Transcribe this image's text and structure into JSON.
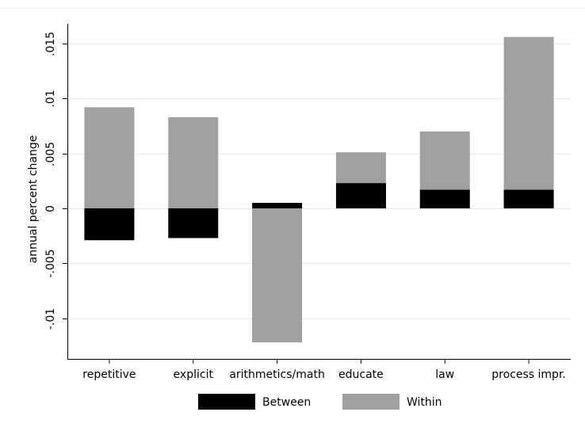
{
  "chart_data": {
    "type": "bar",
    "stacked": true,
    "categories": [
      "repetitive",
      "explicit",
      "arithmetics/math",
      "educate",
      "law",
      "process impr."
    ],
    "series": [
      {
        "name": "Between",
        "color": "#000000",
        "values": [
          -0.0029,
          -0.0027,
          0.0005,
          0.0023,
          0.0017,
          0.0017
        ]
      },
      {
        "name": "Within",
        "color": "#a0a0a0",
        "values": [
          0.0092,
          0.0083,
          -0.0122,
          0.0028,
          0.0053,
          0.0139
        ]
      }
    ],
    "ylabel": "annual percent change",
    "xlabel": "",
    "ylim": [
      -0.0137,
      0.0168
    ],
    "yticks": [
      -0.01,
      -0.005,
      0,
      0.005,
      0.01,
      0.015
    ],
    "ytick_labels": [
      "-.01",
      "-.005",
      "0",
      ".005",
      ".01",
      ".015"
    ],
    "grid": true,
    "legend_position": "bottom"
  }
}
